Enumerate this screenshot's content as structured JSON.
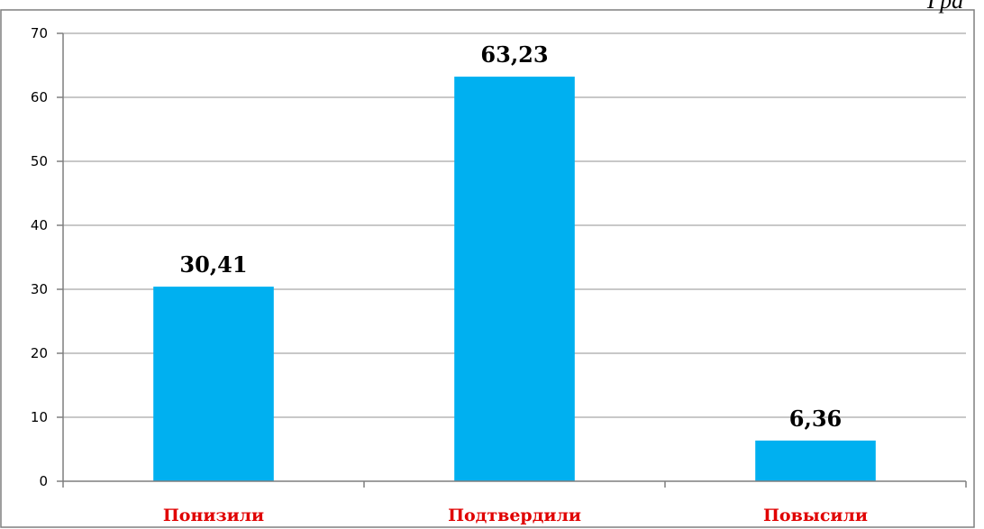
{
  "corner_caption": "Гра",
  "colors": {
    "bar": "#00b0f0",
    "category_label": "#e00000"
  },
  "chart_data": {
    "type": "bar",
    "categories": [
      "Понизили",
      "Подтвердили",
      "Повысили"
    ],
    "values": [
      30.41,
      63.23,
      6.36
    ],
    "data_labels": [
      "30,41",
      "63,23",
      "6,36"
    ],
    "y_ticks": [
      "0",
      "10",
      "20",
      "30",
      "40",
      "50",
      "60",
      "70"
    ],
    "ylim": [
      0,
      70
    ],
    "y_step": 10,
    "grid": true,
    "legend": "none",
    "title": "",
    "xlabel": "",
    "ylabel": ""
  }
}
